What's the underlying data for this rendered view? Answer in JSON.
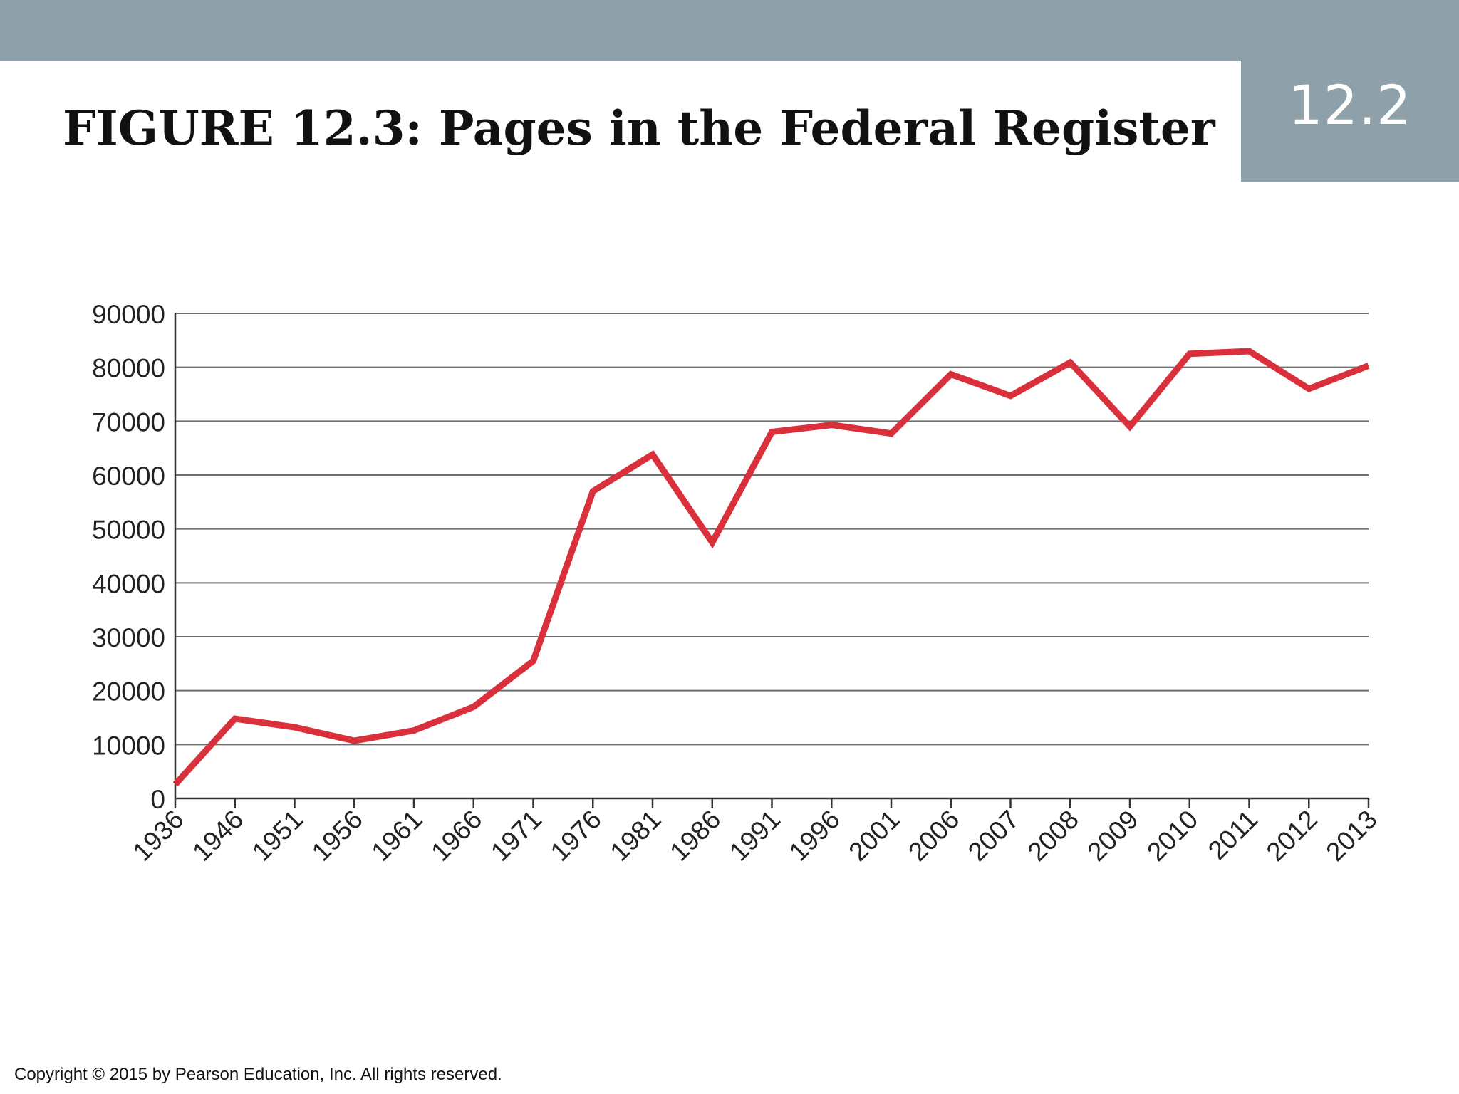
{
  "header": {
    "section_number": "12.2",
    "title": "FIGURE 12.3: Pages in the Federal Register",
    "accent_color": "#8ea0a9"
  },
  "chart_data": {
    "type": "line",
    "title": "FIGURE 12.3: Pages in the Federal Register",
    "xlabel": "",
    "ylabel": "",
    "categories": [
      "1936",
      "1946",
      "1951",
      "1956",
      "1961",
      "1966",
      "1971",
      "1976",
      "1981",
      "1986",
      "1991",
      "1996",
      "2001",
      "2006",
      "2007",
      "2008",
      "2009",
      "2010",
      "2011",
      "2012",
      "2013"
    ],
    "series": [
      {
        "color": "#d9303c",
        "values": [
          2600,
          14800,
          13200,
          10700,
          12600,
          17000,
          25500,
          57000,
          63800,
          47500,
          68000,
          69300,
          67700,
          78700,
          74700,
          80900,
          69000,
          82500,
          83000,
          76000,
          80300
        ]
      }
    ],
    "ylim": [
      0,
      90000
    ],
    "yticks": [
      0,
      10000,
      20000,
      30000,
      40000,
      50000,
      60000,
      70000,
      80000,
      90000
    ],
    "grid": true
  },
  "footer": {
    "copyright": "Copyright © 2015 by Pearson Education, Inc. All rights reserved."
  }
}
